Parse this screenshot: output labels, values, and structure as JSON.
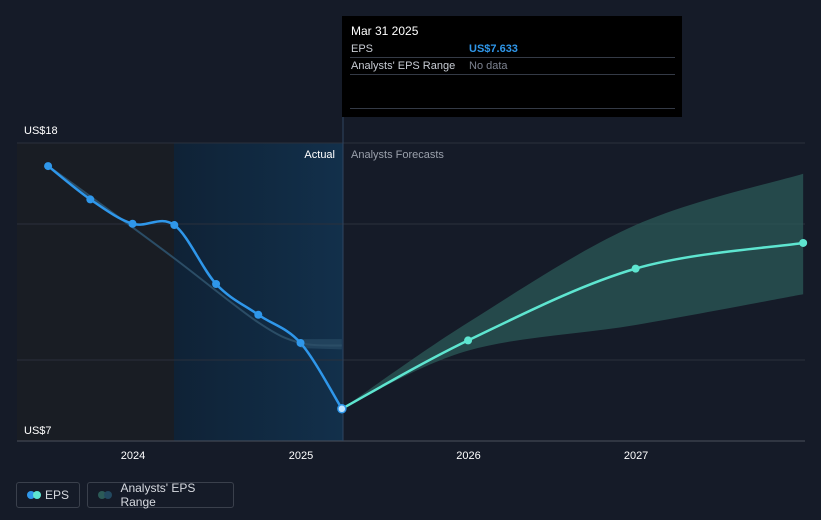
{
  "chart_data": {
    "type": "line",
    "y_axis": {
      "labels": [
        "US$18",
        "US$7"
      ],
      "ylim": [
        7,
        18
      ]
    },
    "x_axis": {
      "ticks": [
        "2024",
        "2025",
        "2026",
        "2027"
      ]
    },
    "sections": {
      "actual_label": "Actual",
      "forecast_label": "Analysts Forecasts"
    },
    "series": [
      {
        "name": "EPS",
        "color": "#2f97ea",
        "points": [
          {
            "x": "2023-06-30",
            "y": 17.1
          },
          {
            "x": "2023-09-30",
            "y": 15.8
          },
          {
            "x": "2023-12-31",
            "y": 14.85
          },
          {
            "x": "2024-03-31",
            "y": 14.8
          },
          {
            "x": "2024-06-30",
            "y": 12.5
          },
          {
            "x": "2024-09-30",
            "y": 11.3
          },
          {
            "x": "2024-12-31",
            "y": 10.2
          },
          {
            "x": "2025-03-31",
            "y": 7.633
          }
        ]
      },
      {
        "name": "EPS forecast",
        "color": "#5ee5d0",
        "points": [
          {
            "x": "2025-03-31",
            "y": 7.633
          },
          {
            "x": "2025-12-31",
            "y": 10.3
          },
          {
            "x": "2026-12-31",
            "y": 13.1
          },
          {
            "x": "2027-12-31",
            "y": 14.1
          }
        ]
      }
    ],
    "analyst_range": {
      "name": "Analysts' EPS Range",
      "color": "#2b5a57",
      "points": [
        {
          "x": "2025-03-31",
          "low": 7.633,
          "high": 7.633
        },
        {
          "x": "2025-12-31",
          "low": 9.9,
          "high": 11.0
        },
        {
          "x": "2026-12-31",
          "low": 10.9,
          "high": 14.8
        },
        {
          "x": "2027-12-31",
          "low": 12.1,
          "high": 16.8
        }
      ]
    },
    "tooltip": {
      "date": "Mar 31 2025",
      "eps_label": "EPS",
      "eps_value": "US$7.633",
      "range_label": "Analysts' EPS Range",
      "range_value": "No data"
    },
    "legend": [
      "EPS",
      "Analysts' EPS Range"
    ]
  },
  "colors": {
    "background": "#151b28",
    "eps": "#2f97ea",
    "forecast": "#5ee5d0",
    "range": "#2b5a57",
    "past_band": "#10293f"
  }
}
